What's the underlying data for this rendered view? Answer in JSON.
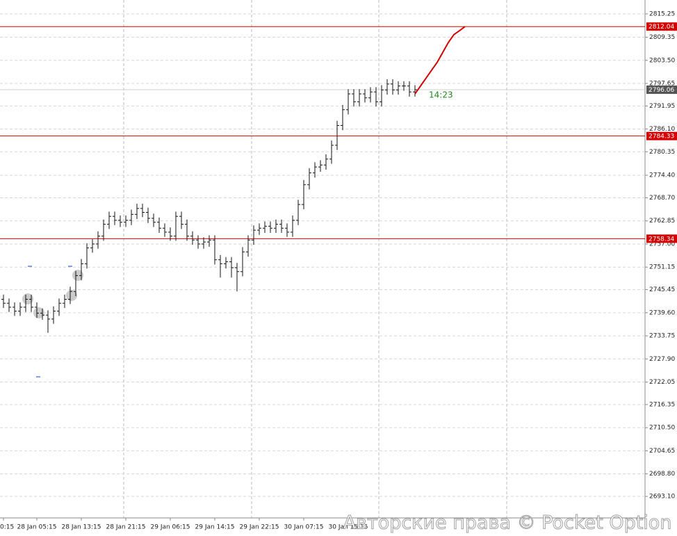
{
  "chart_data": {
    "type": "ohlc",
    "categories": [
      "0:15",
      null,
      null,
      null,
      null,
      null,
      "28 Jan 05:15",
      null,
      null,
      null,
      null,
      null,
      null,
      null,
      "28 Jan 13:15",
      null,
      null,
      null,
      null,
      null,
      null,
      null,
      "28 Jan 21:15",
      null,
      null,
      null,
      null,
      null,
      null,
      null,
      "29 Jan 06:15",
      null,
      null,
      null,
      null,
      null,
      null,
      null,
      "29 Jan 14:15",
      null,
      null,
      null,
      null,
      null,
      null,
      null,
      "29 Jan 22:15",
      null,
      null,
      null,
      null,
      null,
      null,
      null,
      "30 Jan 07:15",
      null,
      null,
      null,
      null,
      null,
      null,
      null,
      "30 Jan 15:15",
      null,
      null,
      null,
      null,
      null,
      null,
      null,
      null,
      null,
      null,
      null,
      null,
      null,
      null,
      null,
      null,
      null,
      null,
      null,
      null,
      null
    ],
    "open": [
      2743,
      2742,
      2741,
      2740,
      2741,
      2743,
      2741,
      2739.5,
      2739,
      2738,
      2740,
      2742,
      2743,
      2745,
      2749,
      2752,
      2756,
      2757,
      2759,
      2762,
      2764,
      2763,
      2762.5,
      2763,
      2764.5,
      2766,
      2765,
      2763.5,
      2762.5,
      2761,
      2760,
      2759,
      2764,
      2762,
      2759,
      2758,
      2757,
      2757.5,
      2758,
      2753,
      2752,
      2752.5,
      2751,
      2750,
      2755,
      2758,
      2760.5,
      2761,
      2761.5,
      2761,
      2762,
      2761,
      2760,
      2763,
      2767,
      2772,
      2775,
      2776.5,
      2777,
      2778.5,
      2782,
      2787,
      2791,
      2795,
      2793,
      2795,
      2794,
      2795.5,
      2793,
      2796,
      2797.5,
      2796,
      2797,
      2797,
      2795.5,
      null,
      null,
      null,
      null,
      null,
      null,
      null,
      null,
      null
    ],
    "high": [
      2744.2,
      2743.2,
      2742.2,
      2742.2,
      2744.2,
      2744.2,
      2742.2,
      2740.7,
      2740.2,
      2741.2,
      2743.2,
      2744.2,
      2746.2,
      2750.2,
      2753.2,
      2757.2,
      2758.2,
      2760.2,
      2763.2,
      2765.2,
      2765.2,
      2764.2,
      2764.2,
      2765.7,
      2767.2,
      2767.2,
      2766.2,
      2764.7,
      2763.7,
      2762.2,
      2761.2,
      2765.2,
      2765.2,
      2763.2,
      2760.2,
      2759.2,
      2758.7,
      2759.2,
      2759.2,
      2754.2,
      2753.7,
      2753.7,
      2752.2,
      2756.2,
      2759.2,
      2761.7,
      2762.2,
      2762.7,
      2762.7,
      2763.2,
      2763.2,
      2762.2,
      2764.2,
      2768.2,
      2773.2,
      2776.2,
      2777.7,
      2778.2,
      2779.7,
      2783.2,
      2788.2,
      2792.2,
      2796.2,
      2796.2,
      2796.2,
      2796.2,
      2796.7,
      2796.7,
      2797.2,
      2798.7,
      2798.7,
      2798.2,
      2798.2,
      2798.2,
      2797.2,
      null,
      null,
      null,
      null,
      null,
      null,
      null,
      null,
      null
    ],
    "low": [
      2740.8,
      2739.8,
      2738.8,
      2738.8,
      2739.8,
      2739.8,
      2738.3,
      2737.8,
      2734.5,
      2736.8,
      2738.8,
      2740.8,
      2741.8,
      2743.8,
      2747.8,
      2750.8,
      2754.8,
      2755.8,
      2757.8,
      2760.8,
      2761.8,
      2761.3,
      2761.3,
      2761.8,
      2763.3,
      2763.8,
      2762.3,
      2761.3,
      2759.8,
      2758.8,
      2757.8,
      2757.8,
      2760.8,
      2757.8,
      2756.8,
      2755.8,
      2755.8,
      2756.3,
      2751.8,
      2748.5,
      2750.8,
      2748.5,
      2745,
      2748.8,
      2753.8,
      2756.8,
      2759.3,
      2759.8,
      2759.8,
      2759.8,
      2759.8,
      2758.8,
      2758.8,
      2761.8,
      2765.8,
      2770.8,
      2773.8,
      2775.3,
      2775.8,
      2777.3,
      2780.8,
      2785.8,
      2789.8,
      2791.8,
      2791.8,
      2792.8,
      2792.8,
      2791.8,
      2791.8,
      2794.8,
      2794.8,
      2794.8,
      2795.8,
      2794.3,
      2794.3,
      null,
      null,
      null,
      null,
      null,
      null,
      null,
      null,
      null
    ],
    "close": [
      2742,
      2741,
      2740,
      2741,
      2743,
      2741,
      2739.5,
      2739,
      2738,
      2740,
      2742,
      2743,
      2745,
      2749,
      2752,
      2756,
      2757,
      2759,
      2762,
      2764,
      2763,
      2762.5,
      2763,
      2764.5,
      2766,
      2765,
      2763.5,
      2762.5,
      2761,
      2760,
      2759,
      2764,
      2762,
      2759,
      2758,
      2757,
      2757.5,
      2758,
      2753,
      2752,
      2752.5,
      2751,
      2750,
      2755,
      2758,
      2760.5,
      2761,
      2761.5,
      2761,
      2762,
      2761,
      2760,
      2763,
      2767,
      2772,
      2775,
      2776.5,
      2777,
      2778.5,
      2782,
      2787,
      2791,
      2795,
      2793,
      2795,
      2794,
      2795.5,
      2793,
      2796,
      2797.5,
      2796,
      2797,
      2797,
      2795.5,
      2796.06,
      null,
      null,
      null,
      null,
      null,
      null,
      null,
      null,
      null
    ],
    "forecast": {
      "color": "#d40000",
      "values": [
        null,
        null,
        null,
        null,
        null,
        null,
        null,
        null,
        null,
        null,
        null,
        null,
        null,
        null,
        null,
        null,
        null,
        null,
        null,
        null,
        null,
        null,
        null,
        null,
        null,
        null,
        null,
        null,
        null,
        null,
        null,
        null,
        null,
        null,
        null,
        null,
        null,
        null,
        null,
        null,
        null,
        null,
        null,
        null,
        null,
        null,
        null,
        null,
        null,
        null,
        null,
        null,
        null,
        null,
        null,
        null,
        null,
        null,
        null,
        null,
        null,
        null,
        null,
        null,
        null,
        null,
        null,
        null,
        null,
        null,
        null,
        null,
        null,
        null,
        2795,
        2797,
        2799,
        2801,
        2803,
        2805.5,
        2808,
        2810,
        2811,
        2812.04
      ]
    },
    "ylim": [
      2687.65,
      2818.77
    ],
    "yticks": [
      2815.25,
      2809.35,
      {
        "value": 2803.5,
        "label": "2803.50"
      },
      2797.65,
      2791.95,
      {
        "value": 2786.1,
        "label": "2786.10"
      },
      2780.35,
      {
        "value": 2774.4,
        "label": "2774.40"
      },
      {
        "value": 2768.7,
        "label": "2768.70"
      },
      2762.85,
      {
        "value": 2757,
        "label": "2757.00"
      },
      2751.15,
      2745.45,
      {
        "value": 2739.6,
        "label": "2739.60"
      },
      2733.75,
      {
        "value": 2727.9,
        "label": "2727.90"
      },
      2722.05,
      2716.35,
      {
        "value": 2710.5,
        "label": "2710.50"
      },
      2704.65,
      {
        "value": 2698.8,
        "label": "2698.80"
      },
      {
        "value": 2693.1,
        "label": "2693.10"
      }
    ],
    "levels": [
      {
        "value": 2812.04,
        "color": "#d40000"
      },
      {
        "value": 2784.33,
        "color": "#d40000"
      },
      {
        "value": 2758.34,
        "color": "#d40000"
      }
    ],
    "current_price": {
      "value": 2796.06,
      "color": "#555555"
    },
    "timer": "14:23",
    "watermark": "Авторские права © Pocket Option",
    "grid": true
  }
}
